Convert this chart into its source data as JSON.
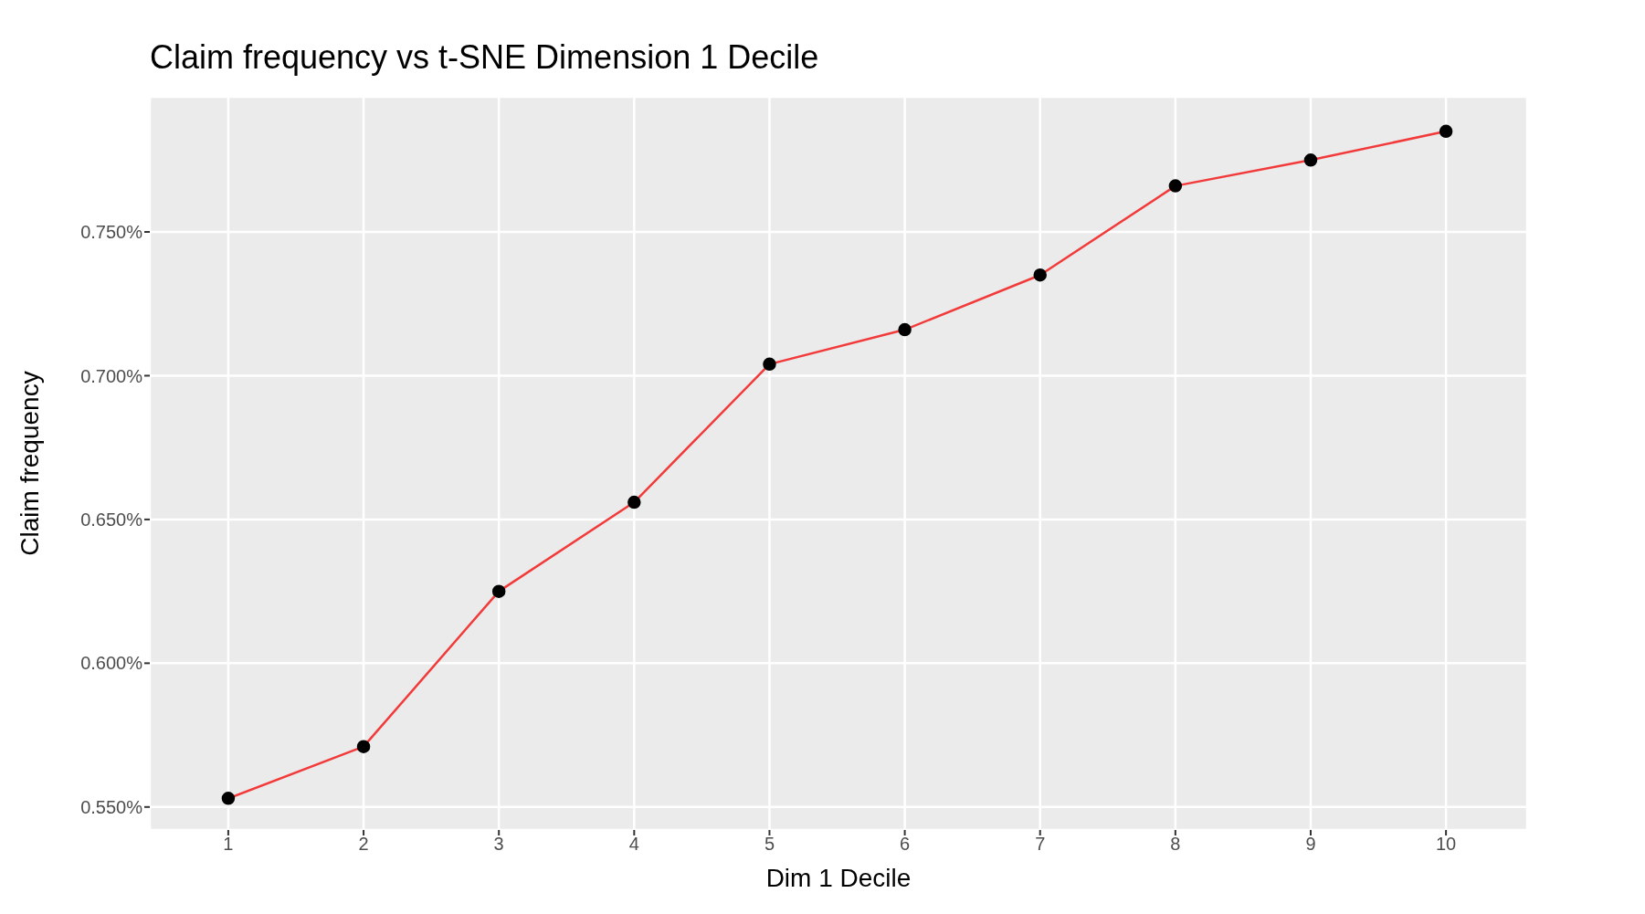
{
  "chart_data": {
    "type": "line",
    "title": "Claim frequency vs t-SNE Dimension 1 Decile",
    "xlabel": "Dim 1 Decile",
    "ylabel": "Claim frequency",
    "x": [
      1,
      2,
      3,
      4,
      5,
      6,
      7,
      8,
      9,
      10
    ],
    "series": [
      {
        "color": "#f23a3a",
        "values": [
          0.553,
          0.571,
          0.625,
          0.656,
          0.704,
          0.716,
          0.735,
          0.766,
          0.775,
          0.785
        ]
      }
    ],
    "xlim": [
      0.42,
      10.6
    ],
    "xticks": [
      1,
      2,
      3,
      4,
      5,
      6,
      7,
      8,
      9,
      10
    ],
    "ylim": [
      0.542,
      0.797
    ],
    "yticks": [
      {
        "value": 0.55,
        "label": "0.550%"
      },
      {
        "value": 0.6,
        "label": "0.600%"
      },
      {
        "value": 0.65,
        "label": "0.650%"
      },
      {
        "value": 0.7,
        "label": "0.700%"
      },
      {
        "value": 0.75,
        "label": "0.750%"
      }
    ],
    "grid": true,
    "marker": "circle",
    "line_style": "solid",
    "legend": false
  }
}
